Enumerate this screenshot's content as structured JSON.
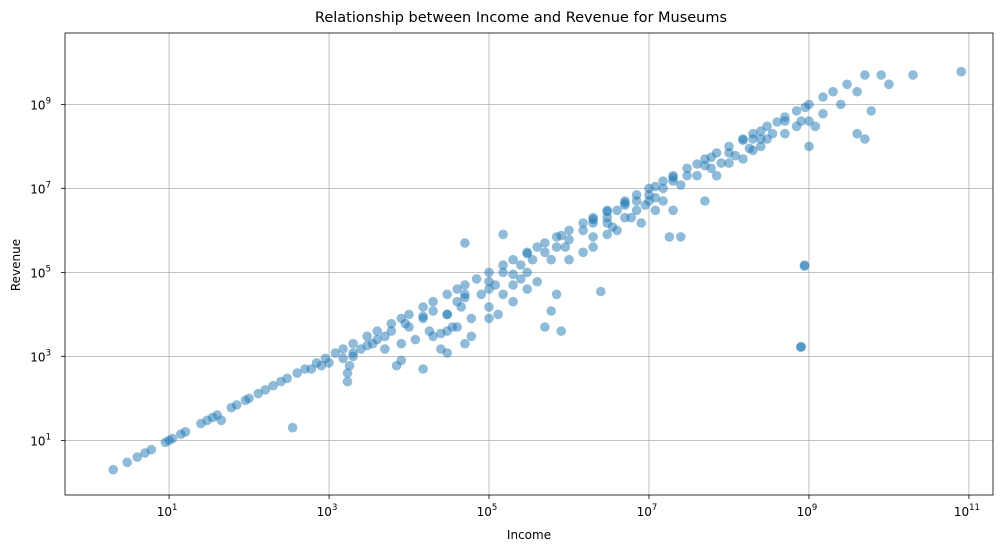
{
  "chart_data": {
    "type": "scatter",
    "title": "Relationship between Income and Revenue for Museums",
    "xlabel": "Income",
    "ylabel": "Revenue",
    "xscale": "log",
    "yscale": "log",
    "xlim": [
      0.5,
      200000000000
    ],
    "ylim": [
      0.5,
      50000000000
    ],
    "x_ticks": [
      {
        "base": "10",
        "exp": "1"
      },
      {
        "base": "10",
        "exp": "3"
      },
      {
        "base": "10",
        "exp": "5"
      },
      {
        "base": "10",
        "exp": "7"
      },
      {
        "base": "10",
        "exp": "9"
      },
      {
        "base": "10",
        "exp": "11"
      }
    ],
    "y_ticks": [
      {
        "base": "10",
        "exp": "1"
      },
      {
        "base": "10",
        "exp": "3"
      },
      {
        "base": "10",
        "exp": "5"
      },
      {
        "base": "10",
        "exp": "7"
      },
      {
        "base": "10",
        "exp": "9"
      }
    ],
    "grid": true,
    "marker_color": "#1f77b4",
    "marker_alpha": 0.5,
    "points": [
      [
        2,
        2
      ],
      [
        3,
        3
      ],
      [
        4,
        4
      ],
      [
        5,
        5
      ],
      [
        6,
        6
      ],
      [
        9,
        9
      ],
      [
        10,
        10
      ],
      [
        11,
        11
      ],
      [
        14,
        14
      ],
      [
        16,
        16
      ],
      [
        25,
        25
      ],
      [
        30,
        30
      ],
      [
        35,
        35
      ],
      [
        40,
        40
      ],
      [
        45,
        30
      ],
      [
        60,
        60
      ],
      [
        70,
        70
      ],
      [
        90,
        90
      ],
      [
        100,
        100
      ],
      [
        130,
        130
      ],
      [
        160,
        160
      ],
      [
        200,
        200
      ],
      [
        250,
        250
      ],
      [
        300,
        300
      ],
      [
        350,
        20
      ],
      [
        400,
        400
      ],
      [
        500,
        500
      ],
      [
        700,
        700
      ],
      [
        900,
        900
      ],
      [
        1200,
        1200
      ],
      [
        1500,
        1500
      ],
      [
        1700,
        250
      ],
      [
        1700,
        400
      ],
      [
        1800,
        600
      ],
      [
        2000,
        1000
      ],
      [
        2000,
        2000
      ],
      [
        2500,
        1500
      ],
      [
        3000,
        3000
      ],
      [
        3500,
        2000
      ],
      [
        4000,
        4000
      ],
      [
        5000,
        3000
      ],
      [
        6000,
        6000
      ],
      [
        7000,
        600
      ],
      [
        8000,
        800
      ],
      [
        8000,
        8000
      ],
      [
        10000,
        5000
      ],
      [
        10000,
        10000
      ],
      [
        15000,
        500
      ],
      [
        15000,
        8000
      ],
      [
        15000,
        15000
      ],
      [
        20000,
        12000
      ],
      [
        20000,
        20000
      ],
      [
        25000,
        1500
      ],
      [
        30000,
        10000
      ],
      [
        30000,
        30000
      ],
      [
        40000,
        20000
      ],
      [
        40000,
        40000
      ],
      [
        50000,
        2000
      ],
      [
        50000,
        30000
      ],
      [
        50000,
        50000
      ],
      [
        60000,
        3000
      ],
      [
        70000,
        70000
      ],
      [
        100000,
        60000
      ],
      [
        100000,
        100000
      ],
      [
        150000,
        100000
      ],
      [
        150000,
        150000
      ],
      [
        200000,
        200000
      ],
      [
        250000,
        150000
      ],
      [
        300000,
        300000
      ],
      [
        350000,
        200000
      ],
      [
        400000,
        400000
      ],
      [
        500000,
        300000
      ],
      [
        500000,
        500000
      ],
      [
        700000,
        400000
      ],
      [
        700000,
        700000
      ],
      [
        1000000,
        600000
      ],
      [
        1000000,
        1000000
      ],
      [
        1500000,
        1000000
      ],
      [
        1500000,
        1500000
      ],
      [
        2000000,
        1500000
      ],
      [
        2000000,
        2000000
      ],
      [
        3000000,
        2000000
      ],
      [
        3000000,
        3000000
      ],
      [
        4000000,
        3000000
      ],
      [
        5000000,
        4000000
      ],
      [
        5000000,
        5000000
      ],
      [
        7000000,
        5000000
      ],
      [
        7000000,
        7000000
      ],
      [
        10000000,
        7000000
      ],
      [
        10000000,
        10000000
      ],
      [
        15000000,
        10000000
      ],
      [
        15000000,
        15000000
      ],
      [
        20000000,
        15000000
      ],
      [
        20000000,
        20000000
      ],
      [
        30000000,
        20000000
      ],
      [
        30000000,
        30000000
      ],
      [
        50000000,
        35000000
      ],
      [
        50000000,
        50000000
      ],
      [
        70000000,
        70000000
      ],
      [
        100000000,
        70000000
      ],
      [
        100000000,
        100000000
      ],
      [
        150000000,
        150000000
      ],
      [
        200000000,
        150000000
      ],
      [
        200000000,
        200000000
      ],
      [
        300000000,
        300000000
      ],
      [
        500000000,
        400000000
      ],
      [
        500000000,
        500000000
      ],
      [
        700000000,
        700000000
      ],
      [
        1000000000,
        1000000000
      ],
      [
        1500000000,
        1500000000
      ],
      [
        2000000000,
        2000000000
      ],
      [
        3000000000,
        3000000000
      ],
      [
        5000000000,
        5000000000
      ],
      [
        8000000000,
        5000000000
      ],
      [
        10000000000,
        3000000000
      ],
      [
        20000000000,
        5000000000
      ],
      [
        80000000000,
        6000000000
      ],
      [
        30000,
        10000
      ],
      [
        20000,
        3000
      ],
      [
        30000,
        4000
      ],
      [
        50000,
        25000
      ],
      [
        100000,
        40000
      ],
      [
        150000,
        30000
      ],
      [
        200000,
        50000
      ],
      [
        250000,
        70000
      ],
      [
        300000,
        100000
      ],
      [
        100000,
        15000
      ],
      [
        130000,
        10000
      ],
      [
        200000,
        20000
      ],
      [
        30000,
        1200
      ],
      [
        60000,
        8000
      ],
      [
        500000,
        5000
      ],
      [
        800000,
        4000
      ],
      [
        600000,
        12000
      ],
      [
        1000000,
        200000
      ],
      [
        700000,
        30000
      ],
      [
        1500000,
        300000
      ],
      [
        2000000,
        400000
      ],
      [
        3000000,
        800000
      ],
      [
        2500000,
        35000
      ],
      [
        4000000,
        1000000
      ],
      [
        6000000,
        2000000
      ],
      [
        8000000,
        1500000
      ],
      [
        3000000,
        1500000
      ],
      [
        12000000,
        3000000
      ],
      [
        15000000,
        5000000
      ],
      [
        20000000,
        3000000
      ],
      [
        10000000,
        5000000
      ],
      [
        25000000,
        700000
      ],
      [
        18000000,
        700000
      ],
      [
        50000000,
        5000000
      ],
      [
        70000000,
        20000000
      ],
      [
        100000000,
        40000000
      ],
      [
        150000000,
        50000000
      ],
      [
        200000000,
        80000000
      ],
      [
        250000000,
        100000000
      ],
      [
        300000000,
        150000000
      ],
      [
        500000000,
        200000000
      ],
      [
        700000000,
        300000000
      ],
      [
        1000000000,
        400000000
      ],
      [
        1200000000,
        300000000
      ],
      [
        1500000000,
        600000000
      ],
      [
        4000000000,
        200000000
      ],
      [
        5000000000,
        150000000
      ],
      [
        6000000000,
        700000000
      ],
      [
        4000000000,
        2000000000
      ],
      [
        2500000000,
        1000000000
      ],
      [
        1000000000,
        100000000
      ],
      [
        50000,
        500000
      ],
      [
        150000,
        800000
      ],
      [
        300000,
        40000
      ],
      [
        400000,
        60000
      ],
      [
        100000,
        8000
      ],
      [
        200000,
        90000
      ],
      [
        45000,
        15000
      ],
      [
        35000,
        5000
      ],
      [
        25000,
        3500
      ],
      [
        12000,
        2500
      ],
      [
        18000,
        4000
      ],
      [
        8000,
        2000
      ],
      [
        5000,
        1500
      ],
      [
        15000,
        9000
      ],
      [
        80000,
        30000
      ],
      [
        120000,
        50000
      ],
      [
        600000,
        200000
      ],
      [
        900000,
        400000
      ],
      [
        2000000,
        700000
      ],
      [
        3500000,
        1200000
      ],
      [
        5000000,
        2000000
      ],
      [
        7000000,
        3000000
      ],
      [
        9000000,
        4000000
      ],
      [
        12000000,
        6000000
      ],
      [
        25000000,
        12000000
      ],
      [
        40000000,
        20000000
      ],
      [
        60000000,
        30000000
      ],
      [
        80000000,
        40000000
      ],
      [
        120000000,
        60000000
      ],
      [
        180000000,
        90000000
      ],
      [
        250000000,
        150000000
      ],
      [
        350000000,
        200000000
      ],
      [
        800000000,
        400000000
      ],
      [
        880000000,
        140000
      ],
      [
        880000000,
        150000
      ],
      [
        800000000,
        1700
      ],
      [
        790000000,
        1650
      ],
      [
        40000,
        5000
      ],
      [
        2000,
        1200
      ],
      [
        3000,
        1800
      ],
      [
        1000,
        700
      ],
      [
        600,
        500
      ],
      [
        800,
        600
      ],
      [
        1500,
        900
      ],
      [
        4000,
        2500
      ],
      [
        6000,
        4000
      ],
      [
        9000,
        6000
      ],
      [
        2000000,
        1800000
      ],
      [
        5000000,
        4500000
      ],
      [
        20000000,
        18000000
      ],
      [
        60000000,
        55000000
      ],
      [
        250000000,
        230000000
      ],
      [
        900000000,
        850000000
      ],
      [
        400000000,
        380000000
      ],
      [
        300000,
        280000
      ],
      [
        800000,
        750000
      ],
      [
        3000000,
        2800000
      ],
      [
        12000000,
        11000000
      ],
      [
        40000000,
        38000000
      ],
      [
        150000000,
        140000000
      ]
    ]
  }
}
